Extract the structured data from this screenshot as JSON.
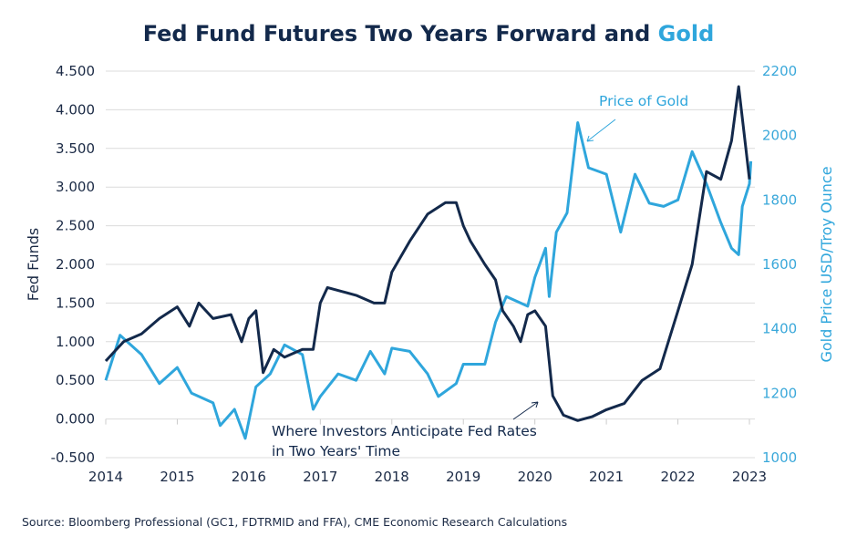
{
  "colors": {
    "fed": "#13294b",
    "gold": "#2fa6dc",
    "grid": "#dcdcdc",
    "text": "#1b2a45"
  },
  "chart_data": {
    "type": "line",
    "title": {
      "part1": "Fed Fund Futures Two Years Forward and ",
      "part2": "Gold"
    },
    "xlabel": "",
    "ylabel": "Fed Funds",
    "y2label": "Gold Price USD/Troy Ounce",
    "xlim": [
      2014,
      2023
    ],
    "ylim": [
      -0.5,
      4.5
    ],
    "y2lim": [
      1000,
      2200
    ],
    "grid": true,
    "xticks": [
      "2014",
      "2015",
      "2016",
      "2017",
      "2018",
      "2019",
      "2020",
      "2021",
      "2022",
      "2023"
    ],
    "yticks": [
      "-0.500",
      "0.000",
      "0.500",
      "1.000",
      "1.500",
      "2.000",
      "2.500",
      "3.000",
      "3.500",
      "4.000",
      "4.500"
    ],
    "y2ticks": [
      "1000",
      "1200",
      "1400",
      "1600",
      "1800",
      "2000",
      "2200"
    ],
    "annotations": {
      "fed": "Where Investors Anticipate Fed Rates",
      "fed_line2": "in Two Years' Time",
      "gold": "Price of Gold"
    },
    "series": [
      {
        "axis": "left",
        "x": [
          2014.0,
          2014.1,
          2014.25,
          2014.5,
          2014.75,
          2015.0,
          2015.17,
          2015.3,
          2015.5,
          2015.75,
          2015.9,
          2016.0,
          2016.1,
          2016.2,
          2016.35,
          2016.5,
          2016.75,
          2016.9,
          2017.0,
          2017.1,
          2017.3,
          2017.5,
          2017.75,
          2017.9,
          2018.0,
          2018.25,
          2018.5,
          2018.75,
          2018.9,
          2019.0,
          2019.1,
          2019.3,
          2019.45,
          2019.55,
          2019.7,
          2019.8,
          2019.9,
          2020.0,
          2020.15,
          2020.25,
          2020.4,
          2020.6,
          2020.8,
          2021.0,
          2021.25,
          2021.5,
          2021.75,
          2022.0,
          2022.2,
          2022.4,
          2022.6,
          2022.75,
          2022.85,
          2022.95,
          2023.0
        ],
        "y": [
          0.75,
          0.85,
          1.0,
          1.1,
          1.3,
          1.45,
          1.2,
          1.5,
          1.3,
          1.35,
          1.0,
          1.3,
          1.4,
          0.6,
          0.9,
          0.8,
          0.9,
          0.9,
          1.5,
          1.7,
          1.65,
          1.6,
          1.5,
          1.5,
          1.9,
          2.3,
          2.65,
          2.8,
          2.8,
          2.5,
          2.3,
          2.0,
          1.8,
          1.4,
          1.2,
          1.0,
          1.35,
          1.4,
          1.2,
          0.3,
          0.05,
          -0.02,
          0.03,
          0.12,
          0.2,
          0.5,
          0.65,
          1.4,
          2.0,
          3.2,
          3.1,
          3.6,
          4.3,
          3.5,
          3.1
        ]
      },
      {
        "axis": "right",
        "x": [
          2014.0,
          2014.2,
          2014.5,
          2014.75,
          2015.0,
          2015.2,
          2015.5,
          2015.6,
          2015.8,
          2015.95,
          2016.1,
          2016.3,
          2016.5,
          2016.75,
          2016.9,
          2017.0,
          2017.25,
          2017.5,
          2017.7,
          2017.9,
          2018.0,
          2018.25,
          2018.5,
          2018.65,
          2018.9,
          2019.0,
          2019.3,
          2019.45,
          2019.6,
          2019.9,
          2020.0,
          2020.15,
          2020.2,
          2020.3,
          2020.45,
          2020.6,
          2020.75,
          2021.0,
          2021.2,
          2021.4,
          2021.6,
          2021.8,
          2022.0,
          2022.2,
          2022.4,
          2022.6,
          2022.75,
          2022.85,
          2022.9,
          2023.0,
          2023.02
        ],
        "y": [
          1240,
          1380,
          1320,
          1230,
          1280,
          1200,
          1170,
          1100,
          1150,
          1060,
          1220,
          1260,
          1350,
          1320,
          1150,
          1190,
          1260,
          1240,
          1330,
          1260,
          1340,
          1330,
          1260,
          1190,
          1230,
          1290,
          1290,
          1420,
          1500,
          1470,
          1560,
          1650,
          1500,
          1700,
          1760,
          2040,
          1900,
          1880,
          1700,
          1880,
          1790,
          1780,
          1800,
          1950,
          1850,
          1730,
          1650,
          1630,
          1780,
          1850,
          1920
        ]
      }
    ]
  },
  "source": "Source: Bloomberg Professional (GC1, FDTRMID and FFA), CME Economic Research Calculations"
}
